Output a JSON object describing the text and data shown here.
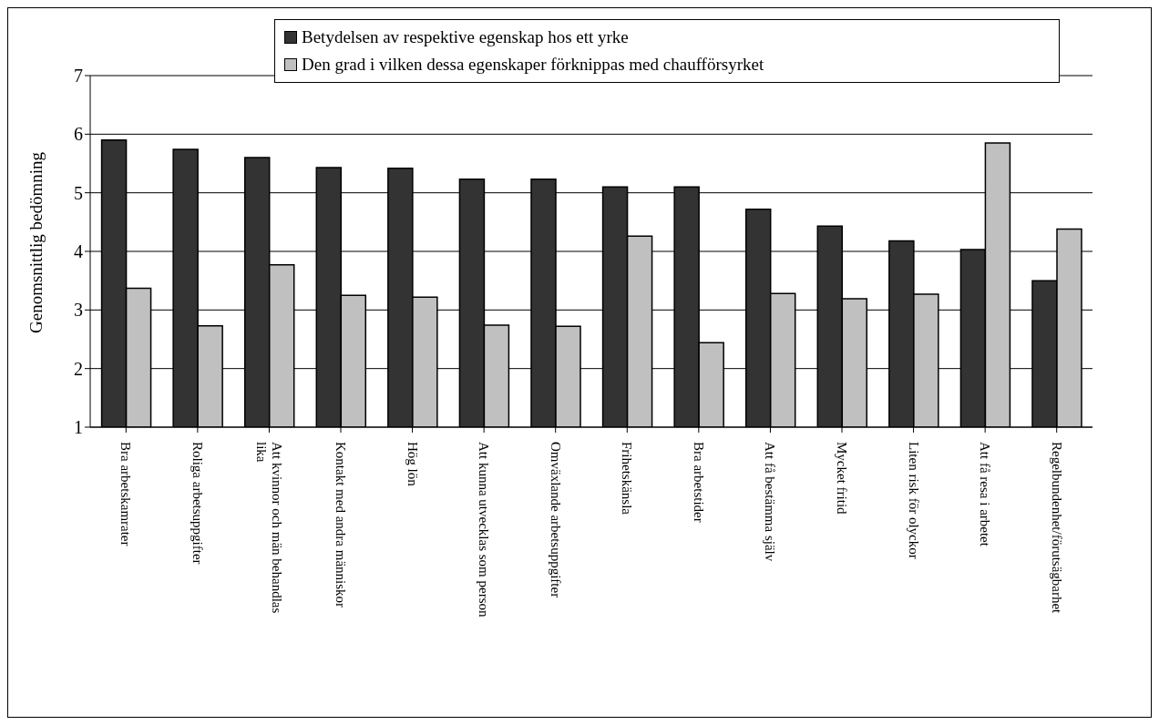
{
  "chart_data": {
    "type": "bar",
    "ylabel": "Genomsnittlig bedömning",
    "categories": [
      "Bra arbetskamrater",
      "Roliga arbetsuppgifter",
      "Att kvinnor och män behandlas lika",
      "Kontakt med andra människor",
      "Hög lön",
      "Att kunna utvecklas som person",
      "Omväxlande arbetsuppgifter",
      "Frihetskänsla",
      "Bra arbetstider",
      "Att få bestämma själv",
      "Mycket fritid",
      "Liten risk för olyckor",
      "Att få resa i arbetet",
      "Regelbundenhet/förutsägbarhet"
    ],
    "series": [
      {
        "name": "Betydelsen av respektive egenskap hos ett yrke",
        "color": "#333333",
        "values": [
          5.9,
          5.74,
          5.6,
          5.43,
          5.42,
          5.23,
          5.23,
          5.1,
          5.1,
          4.72,
          4.43,
          4.18,
          4.03,
          3.5
        ]
      },
      {
        "name": "Den grad i vilken dessa egenskaper förknippas med chaufförsyrket",
        "color": "#c0c0c0",
        "values": [
          3.37,
          2.73,
          3.77,
          3.25,
          3.22,
          2.74,
          2.72,
          4.26,
          2.44,
          3.28,
          3.19,
          3.27,
          5.85,
          4.38
        ]
      }
    ],
    "ylim": [
      1,
      7
    ],
    "yticks": [
      1,
      2,
      3,
      4,
      5,
      6,
      7
    ],
    "grid": "y",
    "legend": "top"
  }
}
